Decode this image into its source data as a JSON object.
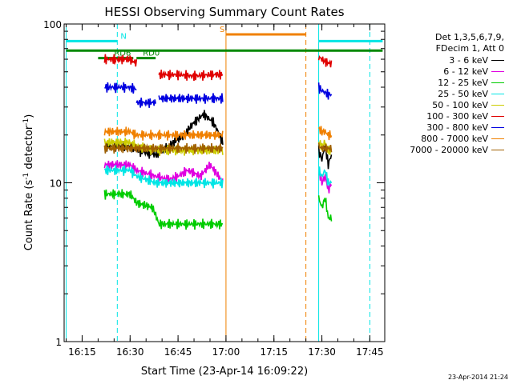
{
  "chart_data": {
    "type": "line",
    "title": "HESSI Observing Summary Count Rates",
    "xlabel": "Start Time (23-Apr-14 16:09:22)",
    "ylabel": "Count Rate (s⁻¹ detector⁻¹)",
    "ylabel_parts": {
      "main": "Count Rate (s",
      "exp1": "-1",
      "mid": " detector",
      "exp2": "-1",
      "end": ")"
    },
    "xlim": [
      "16:09:22",
      "17:49:40"
    ],
    "ylim": [
      1,
      100
    ],
    "yscale": "log",
    "x_ticks": [
      "16:15",
      "16:30",
      "16:45",
      "17:00",
      "17:15",
      "17:30",
      "17:45"
    ],
    "y_ticks": [
      {
        "value": 1,
        "label": "1"
      },
      {
        "value": 10,
        "label": "10"
      },
      {
        "value": 100,
        "label": "100"
      }
    ],
    "legend": {
      "placement": "right",
      "header": [
        "Det 1,3,5,6,7,9,",
        "FDecim 1, Att 0"
      ]
    },
    "series": [
      {
        "name": "3 - 6 keV",
        "color": "#000000",
        "segments": [
          {
            "x": [
              "16:22",
              "16:30",
              "16:32",
              "16:38",
              "16:42",
              "16:47",
              "16:50",
              "16:53",
              "16:56",
              "16:59"
            ],
            "y": [
              17,
              17,
              16,
              15,
              17,
              20,
              24,
              27,
              24,
              18
            ]
          },
          {
            "x": [
              "17:29",
              "17:30",
              "17:31",
              "17:32",
              "17:33"
            ],
            "y": [
              16,
              14,
              17,
              13,
              15
            ]
          }
        ]
      },
      {
        "name": "6 - 12 keV",
        "color": "#e000e0",
        "segments": [
          {
            "x": [
              "16:22",
              "16:30",
              "16:32",
              "16:38",
              "16:42",
              "16:45",
              "16:48",
              "16:52",
              "16:55",
              "16:59"
            ],
            "y": [
              13,
              13,
              12,
              11,
              10.5,
              11,
              12,
              11,
              13,
              10
            ]
          },
          {
            "x": [
              "17:29",
              "17:30",
              "17:31",
              "17:32",
              "17:33"
            ],
            "y": [
              12,
              10,
              11,
              9,
              10
            ]
          }
        ]
      },
      {
        "name": "12 - 25 keV",
        "color": "#00cc00",
        "segments": [
          {
            "x": [
              "16:22",
              "16:30",
              "16:32",
              "16:37",
              "16:39",
              "16:45",
              "16:50",
              "16:55",
              "16:59"
            ],
            "y": [
              8.5,
              8.5,
              7.5,
              7,
              5.5,
              5.5,
              5.5,
              5.5,
              5.5
            ]
          },
          {
            "x": [
              "17:29",
              "17:30",
              "17:31",
              "17:32",
              "17:33"
            ],
            "y": [
              8,
              7,
              8,
              6,
              6
            ]
          }
        ]
      },
      {
        "name": "25 - 50 keV",
        "color": "#00e5e5",
        "segments": [
          {
            "x": [
              "16:22",
              "16:30",
              "16:32",
              "16:38",
              "16:45",
              "16:50",
              "16:55",
              "16:59"
            ],
            "y": [
              12,
              12,
              11,
              10,
              10,
              10,
              10,
              10
            ]
          },
          {
            "x": [
              "17:29",
              "17:30",
              "17:31",
              "17:32",
              "17:33"
            ],
            "y": [
              12,
              11,
              12,
              10,
              10
            ]
          }
        ]
      },
      {
        "name": "50 - 100 keV",
        "color": "#cccc00",
        "segments": [
          {
            "x": [
              "16:22",
              "16:30",
              "16:32",
              "16:38",
              "16:45",
              "16:50",
              "16:55",
              "16:59"
            ],
            "y": [
              18,
              18,
              17,
              16,
              16,
              16,
              16,
              16
            ]
          },
          {
            "x": [
              "17:29",
              "17:30",
              "17:31",
              "17:32",
              "17:33"
            ],
            "y": [
              18,
              17,
              18,
              16,
              16
            ]
          }
        ]
      },
      {
        "name": "100 - 300 keV",
        "color": "#e00000",
        "segments": [
          {
            "x": [
              "16:22",
              "16:25",
              "16:30",
              "16:31",
              "16:32"
            ],
            "y": [
              60,
              60,
              60,
              58,
              57
            ]
          },
          {
            "x": [
              "16:39",
              "16:45",
              "16:50",
              "16:55",
              "16:59"
            ],
            "y": [
              48,
              48,
              47,
              48,
              48
            ]
          },
          {
            "x": [
              "17:29",
              "17:30",
              "17:31",
              "17:32",
              "17:33"
            ],
            "y": [
              62,
              60,
              58,
              57,
              56
            ]
          }
        ]
      },
      {
        "name": "300 - 800 keV",
        "color": "#0000e0",
        "segments": [
          {
            "x": [
              "16:22",
              "16:25",
              "16:30",
              "16:31",
              "16:32"
            ],
            "y": [
              40,
              40,
              40,
              39,
              39
            ]
          },
          {
            "x": [
              "16:32",
              "16:34",
              "16:36",
              "16:38"
            ],
            "y": [
              32,
              32,
              32,
              32
            ]
          },
          {
            "x": [
              "16:39",
              "16:45",
              "16:50",
              "16:55",
              "16:59"
            ],
            "y": [
              34,
              34,
              34,
              34,
              34
            ]
          },
          {
            "x": [
              "17:29",
              "17:30",
              "17:31",
              "17:32",
              "17:33"
            ],
            "y": [
              40,
              38,
              37,
              36,
              36
            ]
          }
        ]
      },
      {
        "name": "800 - 7000 keV",
        "color": "#f08000",
        "segments": [
          {
            "x": [
              "16:22",
              "16:30",
              "16:32",
              "16:38",
              "16:45",
              "16:50",
              "16:55",
              "16:59"
            ],
            "y": [
              21,
              21,
              20,
              20,
              20,
              20,
              20,
              20
            ]
          },
          {
            "x": [
              "17:29",
              "17:30",
              "17:31",
              "17:32",
              "17:33"
            ],
            "y": [
              22,
              21,
              21,
              20,
              20
            ]
          }
        ]
      },
      {
        "name": "7000 - 20000 keV",
        "color": "#a06000",
        "segments": [
          {
            "x": [
              "16:22",
              "16:30",
              "16:38",
              "16:45",
              "16:50",
              "16:55",
              "16:59"
            ],
            "y": [
              16.5,
              16.5,
              16.5,
              16.5,
              16.5,
              16.5,
              16.5
            ]
          },
          {
            "x": [
              "17:29",
              "17:30",
              "17:31",
              "17:32",
              "17:33"
            ],
            "y": [
              17,
              16.5,
              16.5,
              16.5,
              16.5
            ]
          }
        ]
      }
    ],
    "markers": {
      "vlines": [
        {
          "x": "16:10",
          "color": "#00e5e5",
          "style": "solid"
        },
        {
          "x": "16:26",
          "color": "#00e5e5",
          "style": "dashed"
        },
        {
          "x": "17:00",
          "color": "#f08000",
          "style": "solid"
        },
        {
          "x": "17:25",
          "color": "#f08000",
          "style": "dashed"
        },
        {
          "x": "17:29",
          "color": "#00e5e5",
          "style": "solid"
        },
        {
          "x": "17:45",
          "color": "#00e5e5",
          "style": "dashed"
        }
      ],
      "bars": [
        {
          "label": "N",
          "color": "#00e5e5",
          "x0": "16:10",
          "x1": "16:26",
          "y": 78,
          "label_x": "16:27"
        },
        {
          "label": "",
          "color": "#00e5e5",
          "x0": "17:29",
          "x1": "17:49",
          "y": 78
        },
        {
          "label": "S",
          "color": "#f08000",
          "x0": "17:00",
          "x1": "17:25",
          "y": 86,
          "label_x": "16:58"
        },
        {
          "label": "",
          "color": "#008800",
          "x0": "16:10",
          "x1": "17:49",
          "y": 68
        },
        {
          "label": "RD0",
          "color": "#008800",
          "x0": "16:32",
          "x1": "16:38",
          "y": 61,
          "label_x": "16:34"
        },
        {
          "label": "RD6",
          "color": "#008800",
          "x0": "16:20",
          "x1": "16:31",
          "y": 61,
          "label_x": "16:25"
        }
      ],
      "small_label": {
        "text": "v",
        "x": "16:27",
        "y": 61
      }
    }
  },
  "footer": {
    "timestamp": "23-Apr-2014 21:24"
  }
}
